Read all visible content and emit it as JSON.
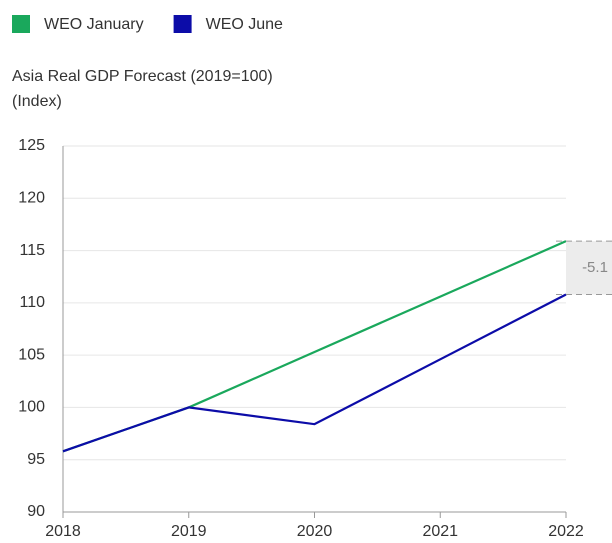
{
  "chart_data": {
    "type": "line",
    "title": "Asia Real GDP Forecast (2019=100)",
    "y_label": "(Index)",
    "x": [
      2018,
      2019,
      2020,
      2021,
      2022
    ],
    "xlim": [
      2018,
      2022
    ],
    "xticks": [
      2018,
      2019,
      2020,
      2021,
      2022
    ],
    "ylim": [
      90,
      125
    ],
    "yticks": [
      90,
      95,
      100,
      105,
      110,
      115,
      120,
      125
    ],
    "grid": true,
    "legend": "top-left",
    "series": [
      {
        "name": "WEO January",
        "color": "#1aa85c",
        "values": [
          95.8,
          100,
          105.3,
          110.6,
          115.9
        ]
      },
      {
        "name": "WEO June",
        "color": "#0c0ca8",
        "values": [
          95.8,
          100,
          98.4,
          104.6,
          110.8
        ]
      }
    ],
    "annotation": "-5.1"
  }
}
